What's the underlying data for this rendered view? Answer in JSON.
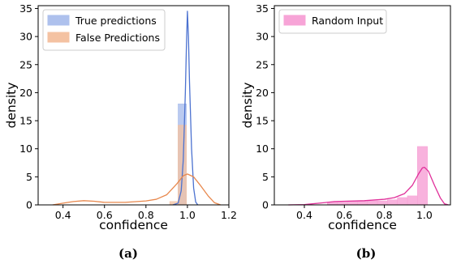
{
  "chart_data": [
    {
      "type": "histogram-kde",
      "caption": "(a)",
      "xlabel": "confidence",
      "ylabel": "density",
      "xlim": [
        0.28,
        1.2
      ],
      "ylim": [
        0,
        35.5
      ],
      "xticks": [
        "0.4",
        "0.6",
        "0.8",
        "1.0",
        "1.2"
      ],
      "xtick_values": [
        0.4,
        0.6,
        0.8,
        1.0,
        1.2
      ],
      "yticks": [
        "0",
        "5",
        "10",
        "15",
        "20",
        "25",
        "30",
        "35"
      ],
      "ytick_values": [
        0,
        5,
        10,
        15,
        20,
        25,
        30,
        35
      ],
      "legend_position": "top-left",
      "series": [
        {
          "name": "True predictions",
          "color": "#4c72d0",
          "fill": "#aec1ed",
          "bins": [
            {
              "x0": 0.955,
              "x1": 0.995,
              "height": 18.0
            }
          ],
          "kde": [
            [
              0.93,
              0.0
            ],
            [
              0.955,
              0.3
            ],
            [
              0.97,
              2.5
            ],
            [
              0.98,
              8.0
            ],
            [
              0.99,
              20.0
            ],
            [
              0.995,
              28.0
            ],
            [
              1.0,
              34.5
            ],
            [
              1.005,
              30.0
            ],
            [
              1.01,
              22.0
            ],
            [
              1.02,
              10.0
            ],
            [
              1.03,
              3.0
            ],
            [
              1.04,
              0.5
            ],
            [
              1.05,
              0.0
            ]
          ]
        },
        {
          "name": "False Predictions",
          "color": "#e8884d",
          "fill": "#f4c2a2",
          "bins": [
            {
              "x0": 0.915,
              "x1": 0.955,
              "height": 0.6
            },
            {
              "x0": 0.955,
              "x1": 0.995,
              "height": 14.2
            }
          ],
          "kde": [
            [
              0.35,
              0.0
            ],
            [
              0.4,
              0.3
            ],
            [
              0.45,
              0.6
            ],
            [
              0.5,
              0.75
            ],
            [
              0.55,
              0.65
            ],
            [
              0.6,
              0.45
            ],
            [
              0.7,
              0.45
            ],
            [
              0.8,
              0.7
            ],
            [
              0.85,
              1.0
            ],
            [
              0.9,
              1.8
            ],
            [
              0.95,
              3.8
            ],
            [
              0.98,
              5.2
            ],
            [
              1.0,
              5.5
            ],
            [
              1.03,
              5.0
            ],
            [
              1.06,
              3.6
            ],
            [
              1.1,
              1.6
            ],
            [
              1.13,
              0.4
            ],
            [
              1.16,
              0.0
            ]
          ]
        }
      ]
    },
    {
      "type": "histogram-kde",
      "caption": "(b)",
      "xlabel": "confidence",
      "ylabel": "density",
      "xlim": [
        0.25,
        1.13
      ],
      "ylim": [
        0,
        35.5
      ],
      "xticks": [
        "0.4",
        "0.6",
        "0.8",
        "1.0"
      ],
      "xtick_values": [
        0.4,
        0.6,
        0.8,
        1.0
      ],
      "yticks": [
        "0",
        "5",
        "10",
        "15",
        "20",
        "25",
        "30",
        "35"
      ],
      "ytick_values": [
        0,
        5,
        10,
        15,
        20,
        25,
        30,
        35
      ],
      "legend_position": "top-left",
      "series": [
        {
          "name": "Random Input",
          "color": "#e0309a",
          "fill": "#f7a4d7",
          "bins": [
            {
              "x0": 0.515,
              "x1": 0.565,
              "height": 0.5
            },
            {
              "x0": 0.565,
              "x1": 0.615,
              "height": 0.5
            },
            {
              "x0": 0.615,
              "x1": 0.665,
              "height": 0.6
            },
            {
              "x0": 0.665,
              "x1": 0.715,
              "height": 0.6
            },
            {
              "x0": 0.715,
              "x1": 0.765,
              "height": 0.7
            },
            {
              "x0": 0.765,
              "x1": 0.815,
              "height": 0.7
            },
            {
              "x0": 0.815,
              "x1": 0.865,
              "height": 0.9
            },
            {
              "x0": 0.865,
              "x1": 0.915,
              "height": 1.3
            },
            {
              "x0": 0.915,
              "x1": 0.965,
              "height": 1.6
            },
            {
              "x0": 0.965,
              "x1": 1.015,
              "height": 10.4
            }
          ],
          "kde": [
            [
              0.32,
              0.0
            ],
            [
              0.4,
              0.05
            ],
            [
              0.5,
              0.4
            ],
            [
              0.55,
              0.6
            ],
            [
              0.6,
              0.65
            ],
            [
              0.7,
              0.75
            ],
            [
              0.8,
              1.0
            ],
            [
              0.85,
              1.3
            ],
            [
              0.9,
              2.0
            ],
            [
              0.94,
              3.5
            ],
            [
              0.97,
              5.5
            ],
            [
              0.99,
              6.6
            ],
            [
              1.0,
              6.7
            ],
            [
              1.02,
              6.0
            ],
            [
              1.05,
              3.5
            ],
            [
              1.08,
              1.2
            ],
            [
              1.1,
              0.2
            ],
            [
              1.12,
              0.0
            ]
          ]
        }
      ]
    }
  ]
}
